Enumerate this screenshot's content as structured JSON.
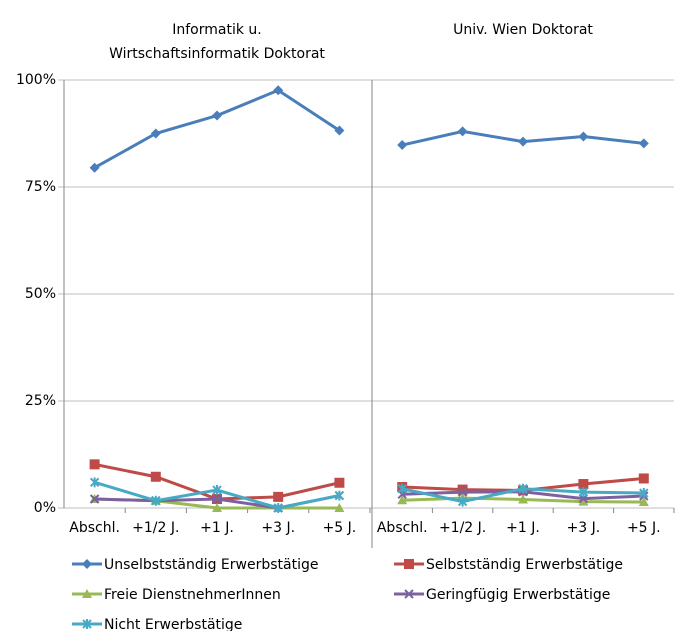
{
  "chart_data": {
    "type": "line",
    "ylim": [
      0,
      100
    ],
    "yticks": [
      {
        "value": 0,
        "label": "0%"
      },
      {
        "value": 25,
        "label": "25%"
      },
      {
        "value": 50,
        "label": "50%"
      },
      {
        "value": 75,
        "label": "75%"
      },
      {
        "value": 100,
        "label": "100%"
      }
    ],
    "grid": true,
    "legend": [
      {
        "name": "Unselbstständig Erwerbstätige",
        "color": "#4a7ebb",
        "marker": "diamond"
      },
      {
        "name": "Selbstständig Erwerbstätige",
        "color": "#be4b48",
        "marker": "square"
      },
      {
        "name": "Freie DienstnehmerInnen",
        "color": "#98b954",
        "marker": "triangle"
      },
      {
        "name": "Geringfügig Erwerbstätige",
        "color": "#7d60a0",
        "marker": "x"
      },
      {
        "name": "Nicht Erwerbstätige",
        "color": "#46aac5",
        "marker": "star"
      }
    ],
    "panels": [
      {
        "title": [
          "Informatik u.",
          "Wirtschaftsinformatik Doktorat"
        ],
        "categories": [
          "Abschl.",
          "+1/2 J.",
          "+1 J.",
          "+3 J.",
          "+5 J."
        ],
        "series": [
          {
            "values": [
              79.5,
              87.5,
              91.7,
              97.6,
              88.2
            ]
          },
          {
            "values": [
              10.2,
              7.3,
              2.1,
              2.6,
              5.9
            ]
          },
          {
            "values": [
              2.1,
              1.7,
              0,
              0,
              0
            ]
          },
          {
            "values": [
              2.1,
              1.7,
              2.1,
              0,
              2.9
            ]
          },
          {
            "values": [
              6.0,
              1.7,
              4.2,
              0,
              2.9
            ]
          }
        ]
      },
      {
        "title": [
          "Univ. Wien Doktorat"
        ],
        "categories": [
          "Abschl.",
          "+1/2 J.",
          "+1 J.",
          "+3 J.",
          "+5 J."
        ],
        "series": [
          {
            "values": [
              84.8,
              88.0,
              85.6,
              86.8,
              85.2
            ]
          },
          {
            "values": [
              4.9,
              4.3,
              4.1,
              5.6,
              6.9
            ]
          },
          {
            "values": [
              1.8,
              2.3,
              2.0,
              1.5,
              1.4
            ]
          },
          {
            "values": [
              3.2,
              3.7,
              3.8,
              2.2,
              2.8
            ]
          },
          {
            "values": [
              4.5,
              1.5,
              4.5,
              3.7,
              3.5
            ]
          }
        ]
      }
    ]
  }
}
